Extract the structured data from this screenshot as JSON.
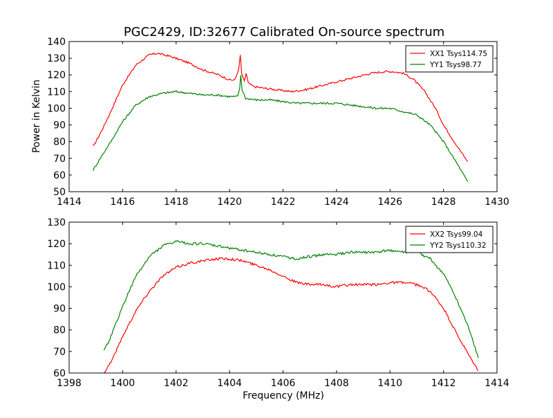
{
  "chart_data": [
    {
      "type": "line",
      "title": "PGC2429, ID:32677 Calibrated On-source spectrum",
      "xlabel": "",
      "ylabel": "Power in Kelvin",
      "xlim": [
        1414,
        1430
      ],
      "ylim": [
        50,
        140
      ],
      "xticks": [
        "1414",
        "1416",
        "1418",
        "1420",
        "1422",
        "1424",
        "1426",
        "1428",
        "1430"
      ],
      "yticks": [
        "50",
        "60",
        "70",
        "80",
        "90",
        "100",
        "110",
        "120",
        "130",
        "140"
      ],
      "grid": false,
      "legend_position": "top-right",
      "series": [
        {
          "name": "XX1 Tsys114.75",
          "color": "#ff0000",
          "x": [
            1414.9,
            1415.2,
            1415.5,
            1416.0,
            1416.5,
            1417.0,
            1417.3,
            1417.8,
            1418.5,
            1419.0,
            1419.6,
            1420.0,
            1420.2,
            1420.35,
            1420.4,
            1420.45,
            1420.55,
            1420.62,
            1420.7,
            1420.9,
            1421.3,
            1421.8,
            1422.3,
            1422.8,
            1423.3,
            1423.8,
            1424.3,
            1424.8,
            1425.3,
            1425.8,
            1426.1,
            1426.5,
            1426.9,
            1427.3,
            1427.7,
            1428.0,
            1428.4,
            1428.9
          ],
          "y": [
            77,
            86,
            96,
            114,
            126,
            132,
            133,
            131,
            127,
            123,
            120,
            117,
            117,
            124,
            132,
            121,
            116,
            121,
            115,
            113,
            112,
            111,
            110,
            111,
            113,
            115,
            117,
            119,
            121,
            122,
            122,
            121,
            117,
            110,
            100,
            90,
            80,
            68
          ]
        },
        {
          "name": "YY1 Tsys98.77",
          "color": "#008000",
          "x": [
            1414.9,
            1415.2,
            1415.6,
            1416.0,
            1416.5,
            1417.0,
            1417.5,
            1418.0,
            1418.5,
            1419.0,
            1419.5,
            1420.0,
            1420.3,
            1420.38,
            1420.42,
            1420.47,
            1420.6,
            1421.0,
            1421.5,
            1422.0,
            1422.5,
            1423.0,
            1423.5,
            1424.0,
            1424.5,
            1425.0,
            1425.5,
            1426.0,
            1426.5,
            1427.0,
            1427.5,
            1428.0,
            1428.5,
            1428.9
          ],
          "y": [
            63,
            71,
            81,
            92,
            102,
            107,
            109,
            110,
            109,
            108,
            108,
            107,
            107,
            112,
            120,
            111,
            106,
            105,
            105,
            104,
            103,
            103,
            103,
            103,
            102,
            101,
            100,
            100,
            98,
            96,
            90,
            80,
            67,
            56
          ]
        }
      ]
    },
    {
      "type": "line",
      "title": "",
      "xlabel": "Frequency (MHz)",
      "ylabel": "",
      "xlim": [
        1398,
        1414
      ],
      "ylim": [
        60,
        130
      ],
      "xticks": [
        "1398",
        "1400",
        "1402",
        "1404",
        "1406",
        "1408",
        "1410",
        "1412",
        "1414"
      ],
      "yticks": [
        "60",
        "70",
        "80",
        "90",
        "100",
        "110",
        "120",
        "130"
      ],
      "grid": false,
      "legend_position": "top-right",
      "series": [
        {
          "name": "XX2 Tsys99.04",
          "color": "#ff0000",
          "x": [
            1399.3,
            1399.6,
            1400.0,
            1400.5,
            1401.0,
            1401.5,
            1402.0,
            1402.5,
            1403.0,
            1403.5,
            1404.0,
            1404.5,
            1405.0,
            1405.5,
            1406.0,
            1406.5,
            1407.0,
            1407.5,
            1408.0,
            1408.5,
            1409.0,
            1409.5,
            1410.0,
            1410.5,
            1411.0,
            1411.5,
            1412.0,
            1412.5,
            1413.0,
            1413.3
          ],
          "y": [
            60,
            66,
            77,
            89,
            98,
            105,
            109,
            111,
            112,
            113,
            113,
            112,
            110,
            108,
            105,
            102,
            101,
            101,
            100,
            101,
            101,
            101,
            102,
            102,
            101,
            98,
            90,
            78,
            67,
            61
          ]
        },
        {
          "name": "YY2 Tsys110.32",
          "color": "#008000",
          "x": [
            1399.3,
            1399.6,
            1400.0,
            1400.5,
            1401.0,
            1401.5,
            1402.0,
            1402.5,
            1403.0,
            1403.5,
            1404.0,
            1404.5,
            1405.0,
            1405.5,
            1406.0,
            1406.5,
            1407.0,
            1407.5,
            1408.0,
            1408.5,
            1409.0,
            1409.5,
            1410.0,
            1410.5,
            1411.0,
            1411.5,
            1412.0,
            1412.5,
            1413.0,
            1413.3
          ],
          "y": [
            70,
            78,
            91,
            105,
            114,
            119,
            121,
            120,
            120,
            119,
            118,
            117,
            116,
            115,
            114,
            113,
            114,
            115,
            115,
            116,
            116,
            116,
            117,
            116,
            116,
            113,
            106,
            94,
            79,
            67
          ]
        }
      ]
    }
  ]
}
